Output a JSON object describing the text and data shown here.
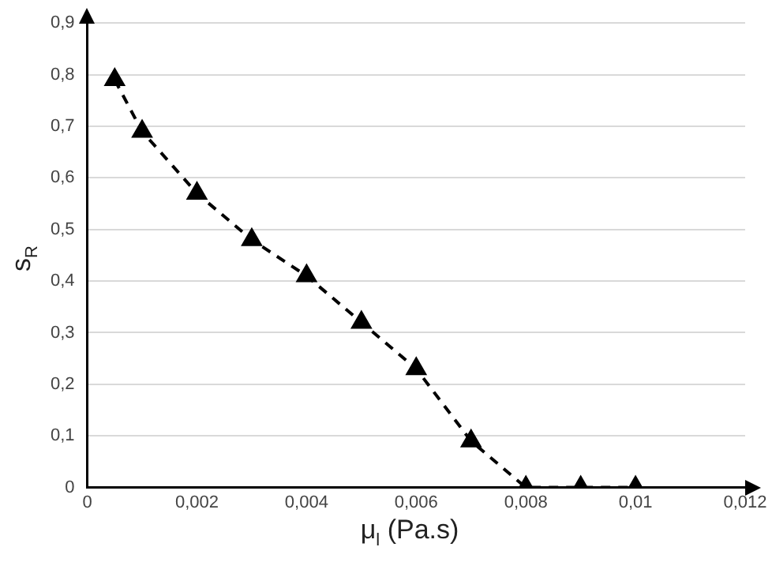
{
  "chart_data": {
    "type": "line",
    "xlabel": "μ$_{l}$ (Pa.s)",
    "ylabel": "s$_{R}$",
    "x": [
      0.0005,
      0.001,
      0.002,
      0.003,
      0.004,
      0.005,
      0.006,
      0.007,
      0.008,
      0.009,
      0.01
    ],
    "series": [
      {
        "color": "#000000",
        "values": [
          0.79,
          0.69,
          0.57,
          0.48,
          0.41,
          0.32,
          0.23,
          0.09,
          0,
          0,
          0
        ]
      }
    ],
    "xlim": [
      0,
      0.012
    ],
    "xticks": [
      0,
      {
        "value": 0.002,
        "label": "0,002"
      },
      {
        "value": 0.004,
        "label": "0,004"
      },
      {
        "value": 0.006,
        "label": "0,006"
      },
      {
        "value": 0.008,
        "label": "0,008"
      },
      {
        "value": 0.01,
        "label": "0,01"
      },
      {
        "value": 0.012,
        "label": "0,012"
      }
    ],
    "ylim": [
      0,
      0.9
    ],
    "yticks": [
      0,
      {
        "value": 0.1,
        "label": "0,1"
      },
      {
        "value": 0.2,
        "label": "0,2"
      },
      {
        "value": 0.3,
        "label": "0,3"
      },
      {
        "value": 0.4,
        "label": "0,4"
      },
      {
        "value": 0.5,
        "label": "0,5"
      },
      {
        "value": 0.6,
        "label": "0,6"
      },
      {
        "value": 0.7,
        "label": "0,7"
      },
      {
        "value": 0.8,
        "label": "0,8"
      },
      {
        "value": 0.9,
        "label": "0,9"
      }
    ],
    "grid": "y",
    "legend": false,
    "marker": "triangle",
    "line_style": "dashed"
  }
}
